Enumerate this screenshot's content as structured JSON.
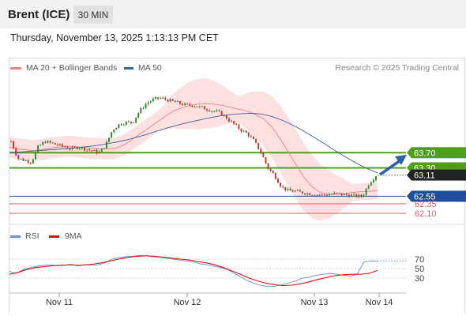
{
  "header": {
    "instrument": "Brent (ICE)",
    "timeframe": "30 MIN",
    "datetime": "Thursday, November 13, 2025 1:13:13 PM CET"
  },
  "legend": {
    "ma20_label": "MA 20 + Bollinger Bands",
    "ma50_label": "MA 50",
    "rsi_label": "RSI",
    "ma9_label": "9MA",
    "credit": "Research © 2025 Trading Central"
  },
  "colors": {
    "candle_up": "#2e8b2e",
    "candle_down": "#c0392b",
    "bollinger_fill": "#fddede",
    "ma20": "#f08080",
    "ma50": "#3a5f9a",
    "resistance": "#4fa017",
    "support_pivot": "#1f4e9c",
    "support": "#e05a5a",
    "current_price_bg": "#222222",
    "rsi_line": "#6a8fd8",
    "rsi_ma": "#e01010"
  },
  "chart_data": {
    "type": "candlestick",
    "price_ylim": [
      61.85,
      65.75
    ],
    "x_ticks": [
      "Nov 11",
      "Nov 12",
      "Nov 13",
      "Nov 14"
    ],
    "current_price": "63.11",
    "levels": [
      {
        "label": "63.70",
        "value": 63.7,
        "kind": "resistance"
      },
      {
        "label": "63.30",
        "value": 63.3,
        "kind": "resistance"
      },
      {
        "label": "62.55",
        "value": 62.55,
        "kind": "pivot"
      },
      {
        "label": "62.35",
        "value": 62.35,
        "kind": "support"
      },
      {
        "label": "62.10",
        "value": 62.1,
        "kind": "support"
      }
    ],
    "close_path": [
      64.0,
      63.55,
      63.5,
      63.45,
      63.85,
      64.0,
      63.95,
      63.9,
      63.85,
      63.8,
      63.85,
      63.8,
      63.75,
      63.7,
      63.9,
      64.3,
      64.45,
      64.5,
      64.5,
      64.8,
      65.0,
      65.1,
      65.15,
      65.1,
      65.05,
      65.0,
      64.95,
      64.95,
      64.9,
      64.85,
      64.8,
      64.75,
      64.6,
      64.45,
      64.3,
      64.2,
      64.0,
      63.7,
      63.3,
      63.1,
      62.8,
      62.7,
      62.68,
      62.65,
      62.62,
      62.6,
      62.58,
      62.6,
      62.62,
      62.6,
      62.58,
      62.56,
      62.55,
      62.9,
      63.1
    ],
    "ma20_path": [
      63.85,
      63.8,
      63.78,
      63.75,
      63.78,
      63.82,
      63.85,
      63.87,
      63.86,
      63.84,
      63.82,
      63.8,
      63.8,
      63.82,
      63.9,
      64.05,
      64.2,
      64.35,
      64.5,
      64.65,
      64.8,
      64.88,
      64.95,
      64.98,
      65.0,
      64.98,
      64.95,
      64.9,
      64.85,
      64.8,
      64.72,
      64.6,
      64.4,
      64.1,
      63.75,
      63.4,
      63.05,
      62.8,
      62.65,
      62.6,
      62.6,
      62.62,
      62.65,
      62.67,
      62.68,
      62.7
    ],
    "ma50_path": [
      63.7,
      63.72,
      63.74,
      63.76,
      63.78,
      63.8,
      63.82,
      63.85,
      63.88,
      63.92,
      63.97,
      64.03,
      64.1,
      64.18,
      64.27,
      64.35,
      64.43,
      64.5,
      64.56,
      64.62,
      64.67,
      64.71,
      64.73,
      64.74,
      64.72,
      64.65,
      64.55,
      64.42,
      64.27,
      64.1,
      63.93,
      63.75,
      63.58,
      63.42,
      63.28,
      63.17
    ],
    "rsi": {
      "ylim": [
        0,
        100
      ],
      "ticks": [
        "70",
        "50",
        "30"
      ],
      "values": [
        44,
        40,
        48,
        52,
        55,
        57,
        58,
        56,
        57,
        59,
        56,
        58,
        57,
        58,
        62,
        70,
        73,
        75,
        76,
        78,
        77,
        75,
        74,
        72,
        70,
        68,
        66,
        64,
        60,
        58,
        55,
        52,
        48,
        40,
        32,
        24,
        18,
        14,
        12,
        13,
        16,
        20,
        24,
        30,
        32,
        36,
        38,
        40,
        38,
        36,
        34,
        38,
        64,
        66,
        66
      ],
      "ma9": [
        38,
        42,
        48,
        52,
        54,
        56,
        57,
        58,
        57,
        58,
        60,
        63,
        67,
        71,
        74,
        76,
        77,
        76,
        74,
        72,
        70,
        68,
        65,
        62,
        58,
        52,
        45,
        38,
        30,
        24,
        19,
        16,
        14,
        15,
        18,
        22,
        27,
        31,
        35,
        37,
        38,
        38,
        40,
        46
      ]
    }
  }
}
